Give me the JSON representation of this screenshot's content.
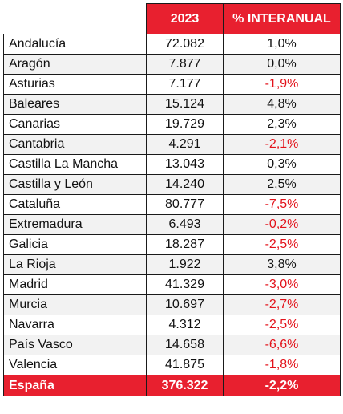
{
  "header": {
    "year_label": "2023",
    "change_label": "% INTERANUAL"
  },
  "rows": [
    {
      "region": "Andalucía",
      "value": "72.082",
      "change": "1,0%"
    },
    {
      "region": "Aragón",
      "value": "7.877",
      "change": "0,0%"
    },
    {
      "region": "Asturias",
      "value": "7.177",
      "change": "-1,9%"
    },
    {
      "region": "Baleares",
      "value": "15.124",
      "change": "4,8%"
    },
    {
      "region": "Canarias",
      "value": "19.729",
      "change": "2,3%"
    },
    {
      "region": "Cantabria",
      "value": "4.291",
      "change": "-2,1%"
    },
    {
      "region": "Castilla La Mancha",
      "value": "13.043",
      "change": "0,3%"
    },
    {
      "region": "Castilla y León",
      "value": "14.240",
      "change": "2,5%"
    },
    {
      "region": "Cataluña",
      "value": "80.777",
      "change": "-7,5%"
    },
    {
      "region": "Extremadura",
      "value": "6.493",
      "change": "-0,2%"
    },
    {
      "region": "Galicia",
      "value": "18.287",
      "change": "-2,5%"
    },
    {
      "region": "La Rioja",
      "value": "1.922",
      "change": "3,8%"
    },
    {
      "region": "Madrid",
      "value": "41.329",
      "change": "-3,0%"
    },
    {
      "region": "Murcia",
      "value": "10.697",
      "change": "-2,7%"
    },
    {
      "region": "Navarra",
      "value": "4.312",
      "change": "-2,5%"
    },
    {
      "region": "País Vasco",
      "value": "14.658",
      "change": "-6,6%"
    },
    {
      "region": "Valencia",
      "value": "41.875",
      "change": "-1,8%"
    }
  ],
  "total": {
    "region": "España",
    "value": "376.322",
    "change": "-2,2%"
  },
  "colors": {
    "header_bg": "#e8202f",
    "negative_text": "#e3131b",
    "stripe_bg": "#f2f2f2"
  }
}
